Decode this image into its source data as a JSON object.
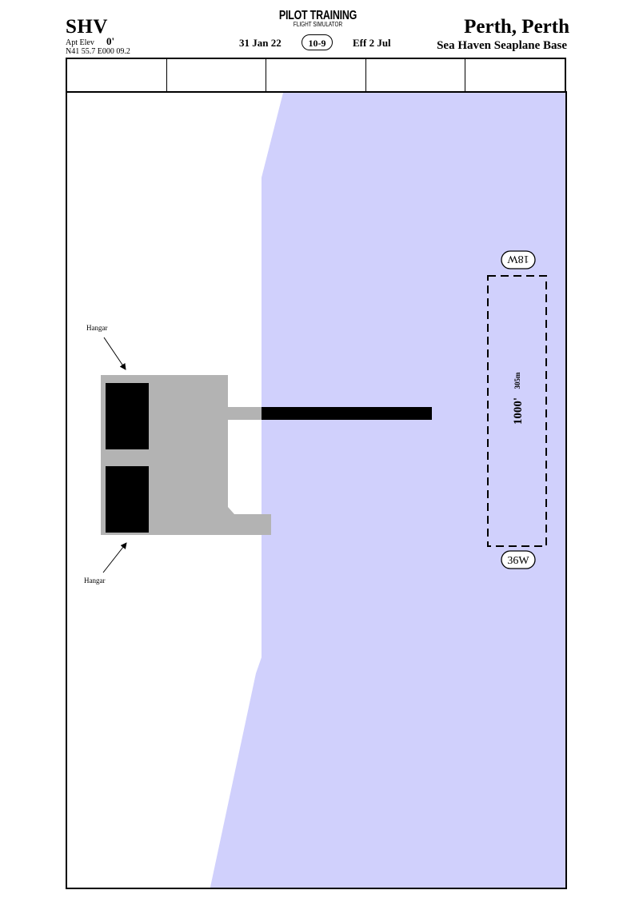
{
  "header": {
    "ident": "SHV",
    "elev_label": "Apt Elev",
    "elev_value": "0'",
    "coordinates": "N41 55.7 E000 09.2",
    "brand_main": "PILOT TRAINING",
    "brand_sub": "FLIGHT SIMULATOR",
    "issue_date": "31 Jan 22",
    "chart_number": "10-9",
    "effective_date": "Eff  2  Jul",
    "city": "Perth, Perth",
    "airport_name": "Sea Haven Seaplane Base"
  },
  "frequency_row": {
    "cells": [
      "",
      "",
      "",
      "",
      ""
    ]
  },
  "map": {
    "colors": {
      "water": "#d0d0fc",
      "land": "#ffffff",
      "apron": "#b3b3b3",
      "hangar": "#000000",
      "pier": "#000000"
    },
    "hangar_labels": [
      "Hangar",
      "Hangar"
    ],
    "waterway": {
      "length_ft": "1000'",
      "length_m": "305m",
      "end_north": "18W",
      "end_south": "36W"
    }
  }
}
